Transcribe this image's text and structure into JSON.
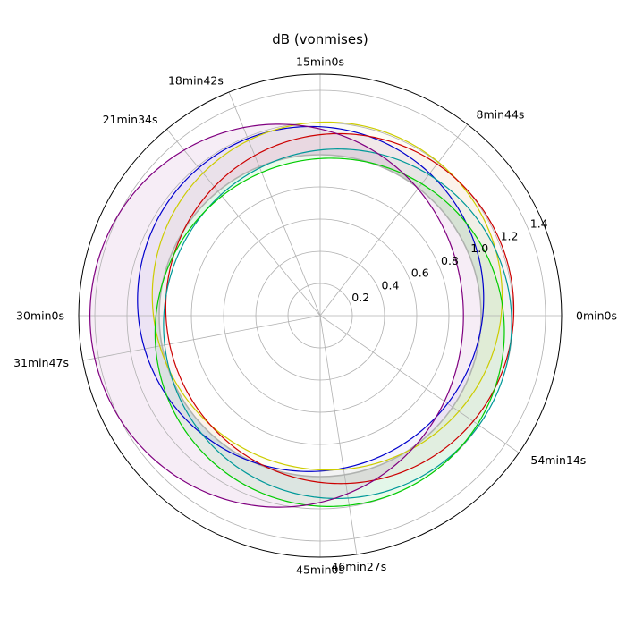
{
  "chart_data": {
    "type": "polar-line",
    "title": "dB (vonmises)",
    "r_ticks": [
      0.2,
      0.4,
      0.6,
      0.8,
      1.0,
      1.2,
      1.4
    ],
    "r_tick_labels": [
      "0.2",
      "0.4",
      "0.6",
      "0.8",
      "1.0",
      "1.2",
      "1.4"
    ],
    "rlim": [
      0,
      1.5
    ],
    "r_label_angle_deg": 22.5,
    "theta_direction": "counterclockwise",
    "theta_zero": "east",
    "theta_ticks": [
      {
        "label": "0min0s",
        "deg": 0
      },
      {
        "label": "8min44s",
        "deg": 52.4
      },
      {
        "label": "15min0s",
        "deg": 90
      },
      {
        "label": "18min42s",
        "deg": 112.2
      },
      {
        "label": "21min34s",
        "deg": 129.4
      },
      {
        "label": "30min0s",
        "deg": 180
      },
      {
        "label": "31min47s",
        "deg": 190.7
      },
      {
        "label": "45min0s",
        "deg": 270
      },
      {
        "label": "46min27s",
        "deg": 278.7
      },
      {
        "label": "54min14s",
        "deg": 325.4
      }
    ],
    "grid": true,
    "baseline": {
      "r": 1.0,
      "color": "#b0b6b0"
    },
    "series": [
      {
        "color": "#0000cc",
        "a": 1.07,
        "b": 0.12,
        "mu_deg": 120,
        "fill": false
      },
      {
        "color": "#cccc00",
        "a": 1.08,
        "b": 0.13,
        "mu_deg": 70,
        "fill": false
      },
      {
        "color": "#cc0000",
        "a": 1.08,
        "b": 0.13,
        "mu_deg": 20,
        "fill": false
      },
      {
        "color": "#009999",
        "a": 1.08,
        "b": 0.12,
        "mu_deg": 335,
        "fill": false
      },
      {
        "color": "#00cc00",
        "a": 1.08,
        "b": 0.12,
        "mu_deg": 300,
        "fill": true
      },
      {
        "color": "#800080",
        "a": 1.16,
        "b": 0.27,
        "mu_deg": 180,
        "fill": true
      }
    ]
  }
}
